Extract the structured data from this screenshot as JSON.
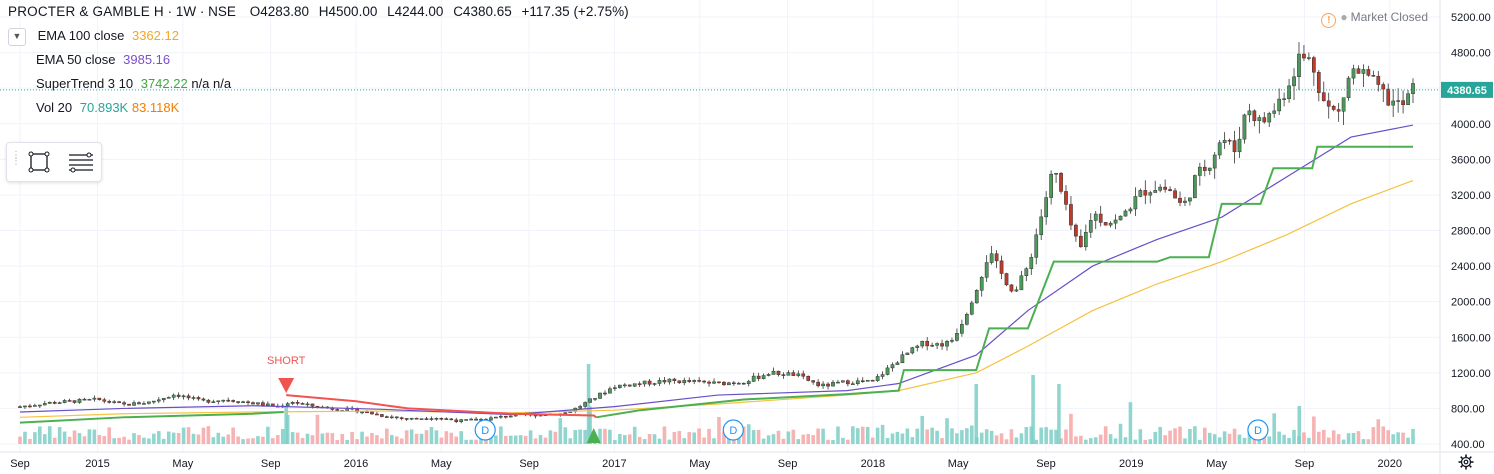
{
  "header": {
    "symbol": "PROCTER & GAMBLE H",
    "interval": "1W",
    "exchange": "NSE",
    "ohlc": {
      "open": "O4283.80",
      "high": "H4500.00",
      "low": "L4244.00",
      "close": "C4380.65",
      "change": "+117.35 (+2.75%)"
    }
  },
  "indicators": [
    {
      "label": "EMA 100 close",
      "values": [
        "3362.12"
      ],
      "colors": [
        "#f5a623"
      ]
    },
    {
      "label": "EMA 50 close",
      "values": [
        "3985.16"
      ],
      "colors": [
        "#7b4fc9"
      ]
    },
    {
      "label": "SuperTrend 3 10",
      "values": [
        "3742.22",
        "n/a",
        "n/a"
      ],
      "colors": [
        "#3fa73f",
        "#131722",
        "#131722"
      ]
    },
    {
      "label": "Vol 20",
      "values": [
        "70.893K",
        "83.118K"
      ],
      "colors": [
        "#26a69a",
        "#f57c00"
      ]
    }
  ],
  "market_status": "Market Closed",
  "last_price_label": "4380.65",
  "colors": {
    "up": "#4c9a5a",
    "down": "#c0392b",
    "ema100": "#f5c242",
    "ema50": "#6a4fc9",
    "supertrend_up": "#4caf50",
    "supertrend_down": "#f05350",
    "vol_up": "#7ccfc7",
    "vol_down": "#f4a6a6",
    "last_price": "#26a69a",
    "grid": "#f0f3fa"
  },
  "chart_data": {
    "type": "line",
    "price_axis": {
      "ticks": [
        "5200.00",
        "4800.00",
        "4400.00",
        "4000.00",
        "3600.00",
        "3200.00",
        "2800.00",
        "2400.00",
        "2000.00",
        "1600.00",
        "1200.00",
        "800.00",
        "400.00"
      ],
      "ylim": [
        400,
        5200
      ]
    },
    "time_axis": {
      "ticks": [
        "Sep",
        "2015",
        "May",
        "Sep",
        "2016",
        "May",
        "Sep",
        "2017",
        "May",
        "Sep",
        "2018",
        "May",
        "Sep",
        "2019",
        "May",
        "Sep",
        "2020"
      ],
      "xlim": [
        2014.58,
        2020.03
      ]
    },
    "series": [
      {
        "name": "PROCTER & GAMBLE H",
        "kind": "candles-approx",
        "x": [
          2014.6,
          2014.7,
          2014.8,
          2014.9,
          2015.0,
          2015.1,
          2015.2,
          2015.3,
          2015.4,
          2015.5,
          2015.6,
          2015.65,
          2015.7,
          2015.8,
          2015.9,
          2016.0,
          2016.1,
          2016.2,
          2016.3,
          2016.4,
          2016.5,
          2016.6,
          2016.7,
          2016.75,
          2016.8,
          2016.9,
          2017.0,
          2017.1,
          2017.2,
          2017.3,
          2017.4,
          2017.5,
          2017.6,
          2017.7,
          2017.8,
          2017.9,
          2018.0,
          2018.05,
          2018.1,
          2018.15,
          2018.2,
          2018.25,
          2018.3,
          2018.35,
          2018.4,
          2018.45,
          2018.5,
          2018.55,
          2018.6,
          2018.65,
          2018.7,
          2018.75,
          2018.8,
          2018.85,
          2018.9,
          2018.95,
          2019.0,
          2019.05,
          2019.1,
          2019.15,
          2019.2,
          2019.25,
          2019.3,
          2019.35,
          2019.4,
          2019.45,
          2019.5,
          2019.55,
          2019.6,
          2019.65,
          2019.7,
          2019.75,
          2019.8,
          2019.85,
          2019.9,
          2019.95,
          2019.99
        ],
        "y": [
          820,
          860,
          880,
          900,
          840,
          870,
          960,
          880,
          900,
          860,
          820,
          880,
          840,
          800,
          780,
          720,
          680,
          700,
          660,
          680,
          720,
          730,
          740,
          800,
          880,
          1050,
          1080,
          1110,
          1100,
          1080,
          1100,
          1200,
          1180,
          1050,
          1100,
          1100,
          1350,
          1450,
          1540,
          1520,
          1540,
          1800,
          2150,
          2550,
          2300,
          2100,
          2400,
          2950,
          3500,
          3000,
          2550,
          3000,
          2900,
          2900,
          3100,
          3250,
          3300,
          3250,
          3050,
          3400,
          3550,
          3850,
          3700,
          4200,
          4000,
          4150,
          4400,
          4750,
          4700,
          4200,
          4100,
          4600,
          4550,
          4400,
          4250,
          4200,
          4380
        ]
      },
      {
        "name": "EMA 100 close",
        "x": [
          2014.6,
          2015.0,
          2015.5,
          2016.0,
          2016.5,
          2016.9,
          2017.3,
          2017.8,
          2018.0,
          2018.3,
          2018.5,
          2018.75,
          2019.0,
          2019.25,
          2019.5,
          2019.75,
          2019.99
        ],
        "y": [
          700,
          740,
          760,
          770,
          750,
          780,
          850,
          950,
          1000,
          1200,
          1500,
          1900,
          2200,
          2450,
          2750,
          3100,
          3362
        ]
      },
      {
        "name": "EMA 50 close",
        "x": [
          2014.6,
          2015.0,
          2015.5,
          2016.0,
          2016.5,
          2016.9,
          2017.3,
          2017.8,
          2018.0,
          2018.3,
          2018.5,
          2018.75,
          2019.0,
          2019.25,
          2019.5,
          2019.75,
          2019.99
        ],
        "y": [
          760,
          800,
          830,
          790,
          730,
          820,
          950,
          1000,
          1080,
          1400,
          1900,
          2400,
          2700,
          2950,
          3400,
          3850,
          3985
        ]
      },
      {
        "name": "SuperTrend 3 10",
        "x": [
          2014.6,
          2015.0,
          2015.5,
          2015.62,
          2015.63,
          2015.9,
          2016.1,
          2016.5,
          2016.82,
          2016.83,
          2017.0,
          2017.4,
          2017.8,
          2018.0,
          2018.02,
          2018.3,
          2018.35,
          2018.5,
          2018.6,
          2018.62,
          2019.0,
          2019.05,
          2019.2,
          2019.25,
          2019.4,
          2019.45,
          2019.6,
          2019.62,
          2019.99
        ],
        "y": [
          640,
          700,
          740,
          760,
          950,
          880,
          800,
          740,
          720,
          700,
          780,
          900,
          960,
          1000,
          1230,
          1230,
          1700,
          1700,
          2450,
          2450,
          2450,
          2500,
          2500,
          3100,
          3100,
          3500,
          3500,
          3742,
          3742
        ]
      },
      {
        "name": "Vol 20",
        "kind": "volume-bars",
        "x": [
          2015.63,
          2016.8,
          2018.3,
          2018.52,
          2018.62,
          2019.55
        ],
        "y": [
          38,
          80,
          60,
          69,
          60,
          38
        ]
      }
    ],
    "annotations": [
      {
        "type": "marker",
        "label": "SHORT",
        "x": 2015.63
      },
      {
        "type": "marker",
        "label": "LONG-arrow",
        "x": 2016.82
      },
      {
        "type": "dividend",
        "label": "D",
        "x": 2016.4
      },
      {
        "type": "dividend",
        "label": "D",
        "x": 2017.36
      },
      {
        "type": "dividend",
        "label": "D",
        "x": 2019.39
      }
    ],
    "grid": true,
    "legend": "top-left"
  }
}
